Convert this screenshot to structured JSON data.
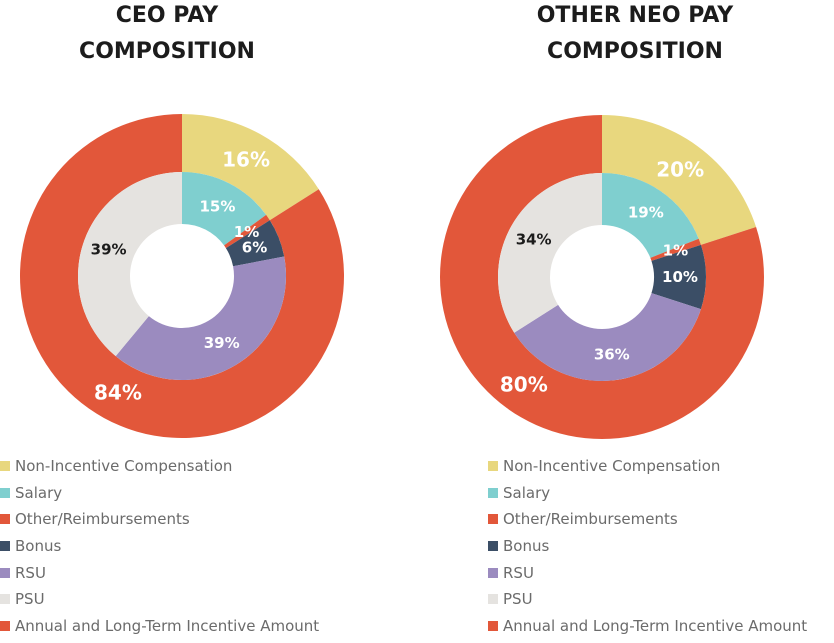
{
  "colors": {
    "non_incentive": "#e8d77e",
    "salary": "#7fcfcf",
    "other": "#e2573a",
    "bonus": "#3b4e66",
    "rsu": "#9b8bbf",
    "psu": "#e5e3e0",
    "incentive": "#e2573a"
  },
  "chart_data": [
    {
      "type": "pie",
      "subtype": "nested-donut",
      "title": "CEO PAY\nCOMPOSITION",
      "outer_ring": [
        {
          "label": "Non-Incentive Compensation",
          "value": 16,
          "display": "16%",
          "color_key": "non_incentive"
        },
        {
          "label": "Annual and Long-Term Incentive Amount",
          "value": 84,
          "display": "84%",
          "color_key": "incentive"
        }
      ],
      "inner_ring": [
        {
          "label": "Salary",
          "value": 15,
          "display": "15%",
          "color_key": "salary"
        },
        {
          "label": "Other/Reimbursements",
          "value": 1,
          "display": "1%",
          "color_key": "other"
        },
        {
          "label": "Bonus",
          "value": 6,
          "display": "6%",
          "color_key": "bonus"
        },
        {
          "label": "RSU",
          "value": 39,
          "display": "39%",
          "color_key": "rsu"
        },
        {
          "label": "PSU",
          "value": 39,
          "display": "39%",
          "color_key": "psu"
        }
      ],
      "legend": [
        {
          "label": "Non-Incentive Compensation",
          "color_key": "non_incentive"
        },
        {
          "label": "Salary",
          "color_key": "salary"
        },
        {
          "label": "Other/Reimbursements",
          "color_key": "other"
        },
        {
          "label": "Bonus",
          "color_key": "bonus"
        },
        {
          "label": "RSU",
          "color_key": "rsu"
        },
        {
          "label": "PSU",
          "color_key": "psu"
        },
        {
          "label": "Annual and Long-Term Incentive Amount",
          "color_key": "incentive"
        }
      ]
    },
    {
      "type": "pie",
      "subtype": "nested-donut",
      "title": "OTHER NEO PAY\nCOMPOSITION",
      "outer_ring": [
        {
          "label": "Non-Incentive Compensation",
          "value": 20,
          "display": "20%",
          "color_key": "non_incentive"
        },
        {
          "label": "Annual and Long-Term Incentive Amount",
          "value": 80,
          "display": "80%",
          "color_key": "incentive"
        }
      ],
      "inner_ring": [
        {
          "label": "Salary",
          "value": 19,
          "display": "19%",
          "color_key": "salary"
        },
        {
          "label": "Other/Reimbursements",
          "value": 1,
          "display": "1%",
          "color_key": "other"
        },
        {
          "label": "Bonus",
          "value": 10,
          "display": "10%",
          "color_key": "bonus"
        },
        {
          "label": "RSU",
          "value": 36,
          "display": "36%",
          "color_key": "rsu"
        },
        {
          "label": "PSU",
          "value": 34,
          "display": "34%",
          "color_key": "psu"
        }
      ],
      "legend": [
        {
          "label": "Non-Incentive Compensation",
          "color_key": "non_incentive"
        },
        {
          "label": "Salary",
          "color_key": "salary"
        },
        {
          "label": "Other/Reimbursements",
          "color_key": "other"
        },
        {
          "label": "Bonus",
          "color_key": "bonus"
        },
        {
          "label": "RSU",
          "color_key": "rsu"
        },
        {
          "label": "PSU",
          "color_key": "psu"
        },
        {
          "label": "Annual and Long-Term Incentive Amount",
          "color_key": "incentive"
        }
      ]
    }
  ]
}
